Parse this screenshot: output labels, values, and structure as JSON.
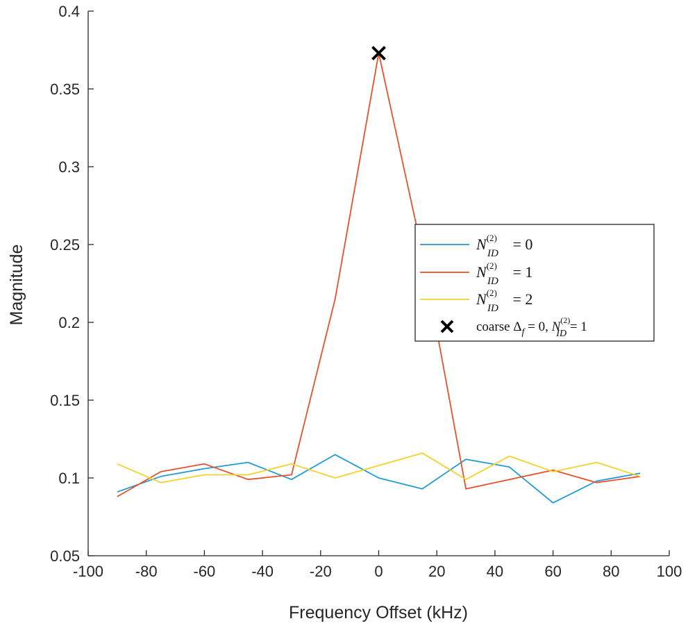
{
  "chart_data": {
    "type": "line",
    "title": "",
    "xlabel": "Frequency Offset (kHz)",
    "ylabel": "Magnitude",
    "xlim": [
      -100,
      100
    ],
    "ylim": [
      0.05,
      0.4
    ],
    "x_ticks": [
      "-100",
      "-80",
      "-60",
      "-40",
      "-20",
      "0",
      "20",
      "40",
      "60",
      "80",
      "100"
    ],
    "y_ticks": [
      "0.05",
      "0.1",
      "0.15",
      "0.2",
      "0.25",
      "0.3",
      "0.35",
      "0.4"
    ],
    "grid": false,
    "legend_position": "center-right",
    "x": [
      -90,
      -75,
      -60,
      -45,
      -30,
      -15,
      0,
      15,
      30,
      45,
      60,
      75,
      90
    ],
    "series": [
      {
        "legend_base": "N",
        "legend_sup": "(2)",
        "legend_sub": "ID",
        "legend_rest": " = 0",
        "color": "#1f9ad6",
        "values": [
          0.091,
          0.101,
          0.106,
          0.11,
          0.099,
          0.115,
          0.1,
          0.093,
          0.112,
          0.107,
          0.084,
          0.098,
          0.103
        ]
      },
      {
        "legend_base": "N",
        "legend_sup": "(2)",
        "legend_sub": "ID",
        "legend_rest": " = 1",
        "color": "#e8502a",
        "values": [
          0.088,
          0.104,
          0.109,
          0.099,
          0.102,
          0.215,
          0.373,
          0.245,
          0.093,
          0.099,
          0.105,
          0.097,
          0.101
        ]
      },
      {
        "legend_base": "N",
        "legend_sup": "(2)",
        "legend_sub": "ID",
        "legend_rest": " = 2",
        "color": "#f2d22b",
        "values": [
          0.109,
          0.097,
          0.102,
          0.102,
          0.109,
          0.1,
          0.108,
          0.116,
          0.099,
          0.114,
          0.104,
          0.11,
          0.101
        ]
      }
    ],
    "marker": {
      "legend_prefix": "coarse ",
      "legend_delta": "Δ",
      "legend_delta_sub": "f",
      "legend_mid": " = 0, ",
      "legend_base": "N",
      "legend_sup": "(2)",
      "legend_sub": "ID",
      "legend_rest": " = 1",
      "x": 0,
      "y": 0.373,
      "color": "#000000"
    }
  }
}
